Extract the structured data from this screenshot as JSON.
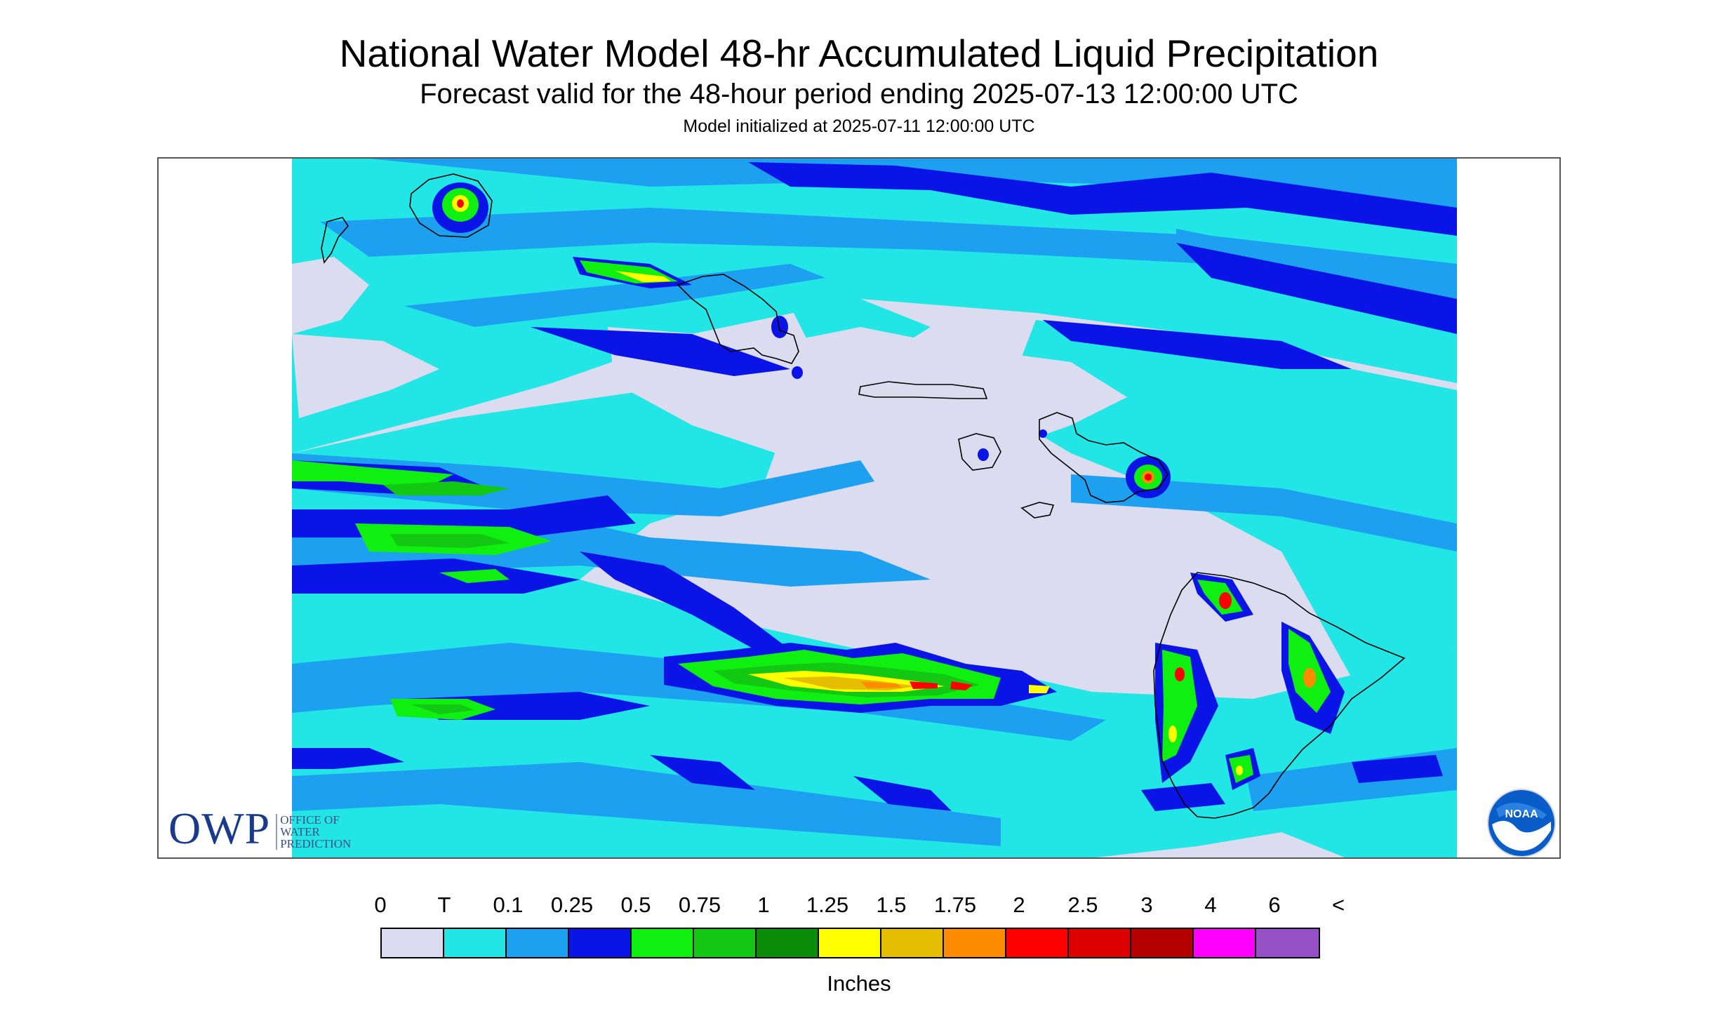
{
  "header": {
    "title": "National Water Model 48-hr Accumulated Liquid Precipitation",
    "subtitle": "Forecast valid for the 48-hour period ending 2025-07-13 12:00:00 UTC",
    "init_line": "Model initialized at 2025-07-11 12:00:00 UTC"
  },
  "logos": {
    "owp_letters": "OWP",
    "owp_lines": [
      "OFFICE OF",
      "WATER",
      "PREDICTION"
    ],
    "noaa_text": "NOAA"
  },
  "legend": {
    "labels": [
      "0",
      "T",
      "0.1",
      "0.25",
      "0.5",
      "0.75",
      "1",
      "1.25",
      "1.5",
      "1.75",
      "2",
      "2.5",
      "3",
      "4",
      "6",
      "<"
    ],
    "colors": [
      "#dcdcf0",
      "#22e6e6",
      "#1ea0f0",
      "#0a14e6",
      "#10f010",
      "#12c812",
      "#0a8c0a",
      "#ffff00",
      "#e6be00",
      "#ff8c00",
      "#ff0000",
      "#dc0000",
      "#b40000",
      "#ff00ff",
      "#9650c8"
    ],
    "units": "Inches"
  },
  "map": {
    "background_color": "#dcdcf0",
    "coastline_color": "#000000",
    "islands": [
      "Kauai",
      "Niihau",
      "Oahu",
      "Molokai",
      "Lanai",
      "Maui",
      "Kahoolawe",
      "Hawaii"
    ]
  }
}
